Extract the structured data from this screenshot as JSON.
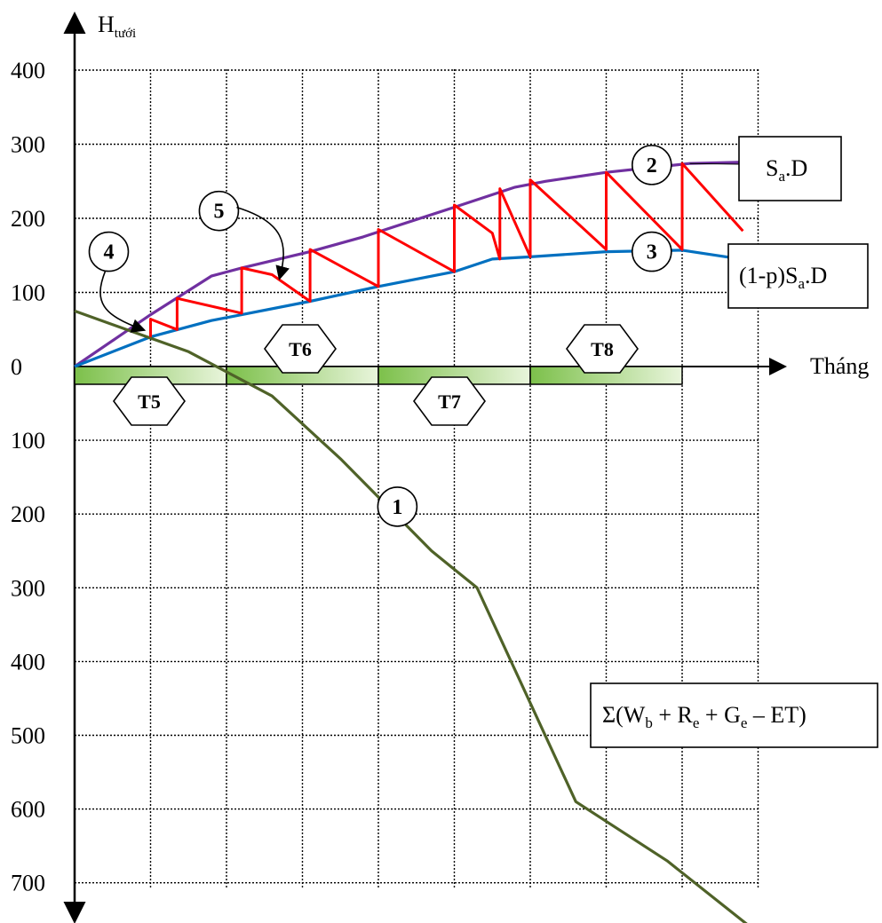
{
  "chart_data": {
    "type": "line",
    "axes": {
      "y_label": "H",
      "y_label_sub": "tưới",
      "x_label": "Tháng"
    },
    "y_ticks_upper": [
      "400",
      "300",
      "200",
      "100",
      "0"
    ],
    "y_ticks_lower": [
      "100",
      "200",
      "300",
      "400",
      "500",
      "600",
      "700"
    ],
    "upper_range": [
      0,
      400
    ],
    "lower_range": [
      0,
      700
    ],
    "x_range": [
      0,
      9
    ],
    "grid": true,
    "months": [
      {
        "label": "T5",
        "start": 0,
        "end": 2
      },
      {
        "label": "T6",
        "start": 2,
        "end": 4
      },
      {
        "label": "T7",
        "start": 4,
        "end": 6
      },
      {
        "label": "T8",
        "start": 6,
        "end": 8
      }
    ],
    "series": [
      {
        "name": "Sa.D",
        "id": "2",
        "color": "#7030a0",
        "panel": "upper",
        "points": [
          [
            0,
            0
          ],
          [
            1.0,
            70
          ],
          [
            1.8,
            122
          ],
          [
            2.2,
            133
          ],
          [
            3.1,
            155
          ],
          [
            3.8,
            175
          ],
          [
            4.1,
            185
          ],
          [
            5.0,
            215
          ],
          [
            5.8,
            242
          ],
          [
            6.2,
            250
          ],
          [
            7.0,
            262
          ],
          [
            8.1,
            274
          ],
          [
            8.9,
            276
          ]
        ]
      },
      {
        "name": "(1-p)Sa.D",
        "id": "3",
        "color": "#0070c0",
        "panel": "upper",
        "points": [
          [
            0,
            0
          ],
          [
            1.0,
            40
          ],
          [
            1.8,
            62
          ],
          [
            2.2,
            70
          ],
          [
            3.1,
            88
          ],
          [
            4.0,
            108
          ],
          [
            5.0,
            128
          ],
          [
            5.5,
            145
          ],
          [
            6.0,
            148
          ],
          [
            7.0,
            155
          ],
          [
            8.0,
            157
          ],
          [
            8.9,
            143
          ]
        ]
      },
      {
        "name": "Σ(Wb + Re + Ge – ET)",
        "id": "1",
        "color": "#4f6228",
        "panel": "mixed",
        "points": [
          [
            0,
            75
          ],
          [
            1.5,
            20
          ],
          [
            2.6,
            -40
          ],
          [
            3.5,
            -125
          ],
          [
            4.7,
            -250
          ],
          [
            5.3,
            -300
          ],
          [
            6.6,
            -590
          ],
          [
            7.8,
            -670
          ],
          [
            8.9,
            -760
          ]
        ]
      },
      {
        "name": "",
        "id": "zigzag",
        "color": "#ff0000",
        "panel": "upper",
        "points": [
          [
            1.0,
            40
          ],
          [
            1.0,
            64
          ],
          [
            1.35,
            50
          ],
          [
            1.35,
            92
          ],
          [
            2.2,
            72
          ],
          [
            2.2,
            133
          ],
          [
            2.6,
            124
          ],
          [
            3.1,
            88
          ],
          [
            3.1,
            158
          ],
          [
            4.0,
            108
          ],
          [
            4.0,
            185
          ],
          [
            5.0,
            128
          ],
          [
            5.0,
            218
          ],
          [
            5.5,
            180
          ],
          [
            5.6,
            145
          ],
          [
            5.6,
            240
          ],
          [
            6.0,
            148
          ],
          [
            6.0,
            252
          ],
          [
            7.0,
            158
          ],
          [
            7.0,
            262
          ],
          [
            8.0,
            158
          ],
          [
            8.0,
            274
          ],
          [
            8.8,
            183
          ]
        ]
      }
    ],
    "annotations": [
      {
        "id": "1",
        "x": 4.25,
        "y": -190
      },
      {
        "id": "2",
        "x": 7.6,
        "y": 272
      },
      {
        "id": "3",
        "x": 7.6,
        "y": 155
      },
      {
        "id": "4",
        "x": 0.45,
        "y": 155
      },
      {
        "id": "5",
        "x": 1.9,
        "y": 210
      }
    ],
    "legend_boxes": [
      {
        "text": "S",
        "sub": "a",
        "rest": ".D"
      },
      {
        "text": "(1-p)S",
        "sub": "a",
        "rest": ".D"
      },
      {
        "text": "Σ(W",
        "parts": [
          [
            "b",
            " + R"
          ],
          [
            "e",
            " + G"
          ],
          [
            "e",
            " – ET)"
          ]
        ]
      }
    ]
  }
}
